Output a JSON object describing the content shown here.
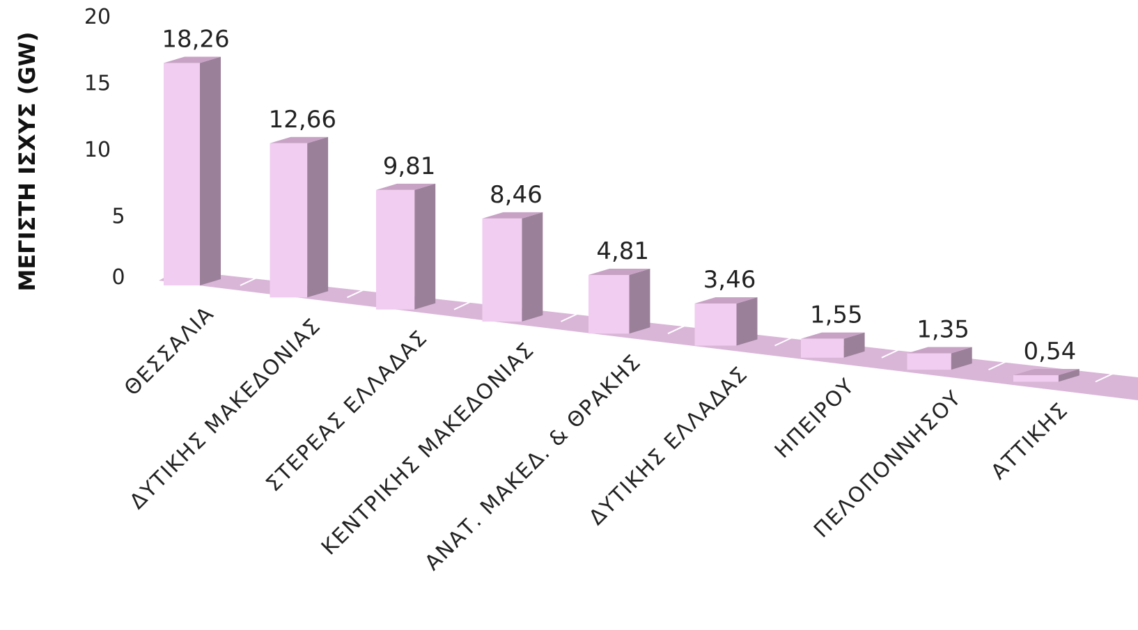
{
  "colors": {
    "bar_front": "#f1cdf1",
    "bar_top": "#c7a2c5",
    "bar_side": "#9b8099",
    "floor": "#d9b6d8",
    "floor_edge": "#ffffff"
  },
  "chart_data": {
    "type": "bar",
    "title": "",
    "xlabel": "",
    "ylabel": "ΜΕΓΙΣΤΗ ΙΣΧΥΣ (GW)",
    "ylim": [
      0,
      20
    ],
    "yticks": [
      "0",
      "5",
      "10",
      "15",
      "20"
    ],
    "grid": false,
    "legend": "none",
    "categories": [
      "ΘΕΣΣΑΛΙΑ",
      "ΔΥΤΙΚΗΣ ΜΑΚΕΔΟΝΙΑΣ",
      "ΣΤΕΡΕΑΣ ΕΛΛΑΔΑΣ",
      "ΚΕΝΤΡΙΚΗΣ ΜΑΚΕΔΟΝΙΑΣ",
      "ΑΝΑΤ. ΜΑΚΕΔ. & ΘΡΑΚΗΣ",
      "ΔΥΤΙΚΗΣ ΕΛΛΑΔΑΣ",
      "ΗΠΕΙΡΟΥ",
      "ΠΕΛΟΠΟΝΝΗΣΟΥ",
      "ΑΤΤΙΚΗΣ"
    ],
    "values": [
      18.26,
      12.66,
      9.81,
      8.46,
      4.81,
      3.46,
      1.55,
      1.35,
      0.54
    ],
    "data_labels": [
      "18,26",
      "12,66",
      "9,81",
      "8,46",
      "4,81",
      "3,46",
      "1,55",
      "1,35",
      "0,54"
    ]
  }
}
